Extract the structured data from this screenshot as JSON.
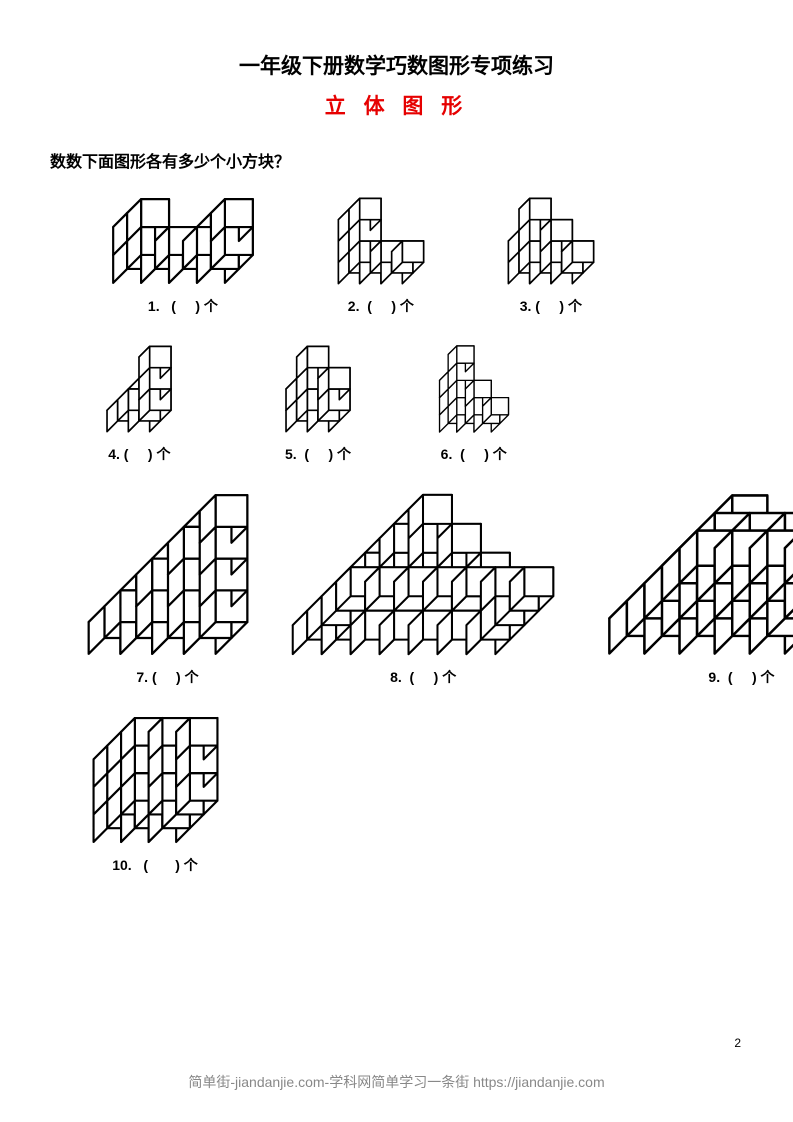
{
  "title": "一年级下册数学巧数图形专项练习",
  "subtitle": "立 体 图 形",
  "instruction": "数数下面图形各有多少个小方块？",
  "captions": {
    "c1": "1.   (     ) 个",
    "c2": "2.  (     ) 个",
    "c3": "3. (     ) 个",
    "c4": "4. (     ) 个",
    "c5": "5.  (     ) 个",
    "c6": "6.  (     ) 个",
    "c7": "7. (     ) 个",
    "c8": "8.  (     ) 个",
    "c9": "9.  (     ) 个",
    "c10": "10.   (       ) 个"
  },
  "page_number": "2",
  "footer": "简单街-jiandanjie.com-学科网简单学习一条街 https://jiandanjie.com",
  "colors": {
    "title_color": "#000000",
    "subtitle_color": "#e60000",
    "text_color": "#000000",
    "footer_color": "#888888",
    "background": "#ffffff",
    "cube_stroke": "#000000",
    "cube_fill": "#ffffff"
  },
  "typography": {
    "title_fontsize": 21,
    "subtitle_fontsize": 21,
    "instruction_fontsize": 16,
    "caption_fontsize": 14,
    "footer_fontsize": 14,
    "pagenum_fontsize": 12
  },
  "figures": {
    "f1": {
      "type": "cubes",
      "unit": 18,
      "cubes": [
        [
          0,
          0,
          0
        ],
        [
          1,
          0,
          0
        ],
        [
          2,
          0,
          0
        ],
        [
          3,
          0,
          0
        ],
        [
          0,
          1,
          0
        ],
        [
          1,
          1,
          0
        ],
        [
          2,
          1,
          0
        ],
        [
          3,
          1,
          0
        ],
        [
          0,
          0,
          1
        ],
        [
          0,
          1,
          1
        ],
        [
          3,
          0,
          1
        ],
        [
          3,
          1,
          1
        ]
      ]
    },
    "f2": {
      "type": "cubes",
      "unit": 18,
      "cubes": [
        [
          0,
          0,
          0
        ],
        [
          1,
          0,
          0
        ],
        [
          2,
          0,
          0
        ],
        [
          0,
          1,
          0
        ],
        [
          1,
          1,
          0
        ],
        [
          2,
          1,
          0
        ],
        [
          0,
          0,
          1
        ],
        [
          0,
          1,
          1
        ],
        [
          0,
          0,
          2
        ],
        [
          0,
          1,
          2
        ]
      ]
    },
    "f3": {
      "type": "cubes",
      "unit": 18,
      "cubes": [
        [
          0,
          0,
          0
        ],
        [
          1,
          0,
          0
        ],
        [
          2,
          0,
          0
        ],
        [
          0,
          1,
          0
        ],
        [
          1,
          1,
          0
        ],
        [
          2,
          1,
          0
        ],
        [
          0,
          0,
          1
        ],
        [
          1,
          0,
          1
        ],
        [
          0,
          1,
          1
        ],
        [
          1,
          1,
          1
        ],
        [
          0,
          0,
          2
        ]
      ]
    },
    "f4": {
      "type": "cubes",
      "unit": 18,
      "cubes": [
        [
          0,
          0,
          0
        ],
        [
          1,
          0,
          0
        ],
        [
          0,
          1,
          0
        ],
        [
          1,
          1,
          0
        ],
        [
          1,
          0,
          1
        ],
        [
          1,
          1,
          1
        ],
        [
          1,
          0,
          2
        ]
      ]
    },
    "f5": {
      "type": "cubes",
      "unit": 18,
      "cubes": [
        [
          0,
          0,
          0
        ],
        [
          1,
          0,
          0
        ],
        [
          0,
          1,
          0
        ],
        [
          1,
          1,
          0
        ],
        [
          0,
          0,
          1
        ],
        [
          1,
          0,
          1
        ],
        [
          0,
          1,
          1
        ],
        [
          0,
          0,
          2
        ]
      ]
    },
    "f6": {
      "type": "cubes",
      "unit": 18,
      "cubes": [
        [
          0,
          0,
          0
        ],
        [
          1,
          0,
          0
        ],
        [
          2,
          0,
          0
        ],
        [
          0,
          1,
          0
        ],
        [
          1,
          1,
          0
        ],
        [
          2,
          1,
          0
        ],
        [
          0,
          0,
          1
        ],
        [
          1,
          0,
          1
        ],
        [
          0,
          1,
          1
        ],
        [
          1,
          1,
          1
        ],
        [
          0,
          0,
          2
        ],
        [
          0,
          1,
          2
        ],
        [
          0,
          0,
          3
        ]
      ]
    },
    "f7": {
      "type": "cubes",
      "unit": 20,
      "cubes": [
        [
          0,
          0,
          0
        ],
        [
          1,
          0,
          0
        ],
        [
          2,
          0,
          0
        ],
        [
          3,
          0,
          0
        ],
        [
          0,
          1,
          0
        ],
        [
          1,
          1,
          0
        ],
        [
          2,
          1,
          0
        ],
        [
          3,
          1,
          0
        ],
        [
          1,
          0,
          1
        ],
        [
          2,
          0,
          1
        ],
        [
          3,
          0,
          1
        ],
        [
          1,
          1,
          1
        ],
        [
          2,
          1,
          1
        ],
        [
          3,
          1,
          1
        ],
        [
          2,
          0,
          2
        ],
        [
          3,
          0,
          2
        ],
        [
          2,
          1,
          2
        ],
        [
          3,
          1,
          2
        ],
        [
          3,
          0,
          3
        ],
        [
          3,
          1,
          3
        ]
      ]
    },
    "f8": {
      "type": "cubes",
      "unit": 20,
      "cubes": [
        [
          0,
          0,
          0
        ],
        [
          1,
          0,
          0
        ],
        [
          2,
          0,
          0
        ],
        [
          3,
          0,
          0
        ],
        [
          4,
          0,
          0
        ],
        [
          5,
          0,
          0
        ],
        [
          6,
          0,
          0
        ],
        [
          0,
          1,
          0
        ],
        [
          6,
          1,
          0
        ],
        [
          0,
          2,
          0
        ],
        [
          6,
          2,
          0
        ],
        [
          0,
          3,
          0
        ],
        [
          1,
          3,
          0
        ],
        [
          2,
          3,
          0
        ],
        [
          3,
          3,
          0
        ],
        [
          4,
          3,
          0
        ],
        [
          5,
          3,
          0
        ],
        [
          6,
          3,
          0
        ],
        [
          1,
          1,
          1
        ],
        [
          2,
          1,
          1
        ],
        [
          3,
          1,
          1
        ],
        [
          4,
          1,
          1
        ],
        [
          5,
          1,
          1
        ],
        [
          1,
          2,
          1
        ],
        [
          5,
          2,
          1
        ],
        [
          2,
          1,
          2
        ],
        [
          3,
          1,
          2
        ],
        [
          4,
          1,
          2
        ],
        [
          2,
          2,
          2
        ],
        [
          4,
          2,
          2
        ],
        [
          3,
          1,
          3
        ],
        [
          3,
          2,
          3
        ]
      ]
    },
    "f9": {
      "type": "cubes",
      "unit": 20,
      "cubes": [
        [
          0,
          0,
          0
        ],
        [
          1,
          0,
          0
        ],
        [
          2,
          0,
          0
        ],
        [
          3,
          0,
          0
        ],
        [
          4,
          0,
          0
        ],
        [
          0,
          1,
          0
        ],
        [
          1,
          1,
          0
        ],
        [
          2,
          1,
          0
        ],
        [
          3,
          1,
          0
        ],
        [
          4,
          1,
          0
        ],
        [
          0,
          2,
          0
        ],
        [
          1,
          2,
          0
        ],
        [
          2,
          2,
          0
        ],
        [
          3,
          2,
          0
        ],
        [
          4,
          2,
          0
        ],
        [
          0,
          3,
          0
        ],
        [
          1,
          3,
          0
        ],
        [
          2,
          3,
          0
        ],
        [
          3,
          3,
          0
        ],
        [
          4,
          3,
          0
        ],
        [
          0,
          4,
          0
        ],
        [
          1,
          4,
          0
        ],
        [
          2,
          4,
          0
        ],
        [
          3,
          4,
          0
        ],
        [
          4,
          4,
          0
        ],
        [
          1,
          1,
          1
        ],
        [
          2,
          1,
          1
        ],
        [
          3,
          1,
          1
        ],
        [
          1,
          2,
          1
        ],
        [
          2,
          2,
          1
        ],
        [
          3,
          2,
          1
        ],
        [
          1,
          3,
          1
        ],
        [
          2,
          3,
          1
        ],
        [
          3,
          3,
          1
        ],
        [
          2,
          2,
          2
        ]
      ]
    },
    "f10": {
      "type": "cubes",
      "unit": 18,
      "cubes": [
        [
          0,
          0,
          0
        ],
        [
          1,
          0,
          0
        ],
        [
          2,
          0,
          0
        ],
        [
          0,
          1,
          0
        ],
        [
          1,
          1,
          0
        ],
        [
          2,
          1,
          0
        ],
        [
          0,
          2,
          0
        ],
        [
          1,
          2,
          0
        ],
        [
          2,
          2,
          0
        ],
        [
          0,
          0,
          1
        ],
        [
          1,
          0,
          1
        ],
        [
          2,
          0,
          1
        ],
        [
          0,
          1,
          1
        ],
        [
          2,
          1,
          1
        ],
        [
          0,
          2,
          1
        ],
        [
          1,
          2,
          1
        ],
        [
          2,
          2,
          1
        ],
        [
          0,
          0,
          2
        ],
        [
          1,
          0,
          2
        ],
        [
          2,
          0,
          2
        ],
        [
          0,
          1,
          2
        ],
        [
          1,
          1,
          2
        ],
        [
          2,
          1,
          2
        ],
        [
          0,
          2,
          2
        ],
        [
          1,
          2,
          2
        ],
        [
          2,
          2,
          2
        ]
      ]
    }
  },
  "layout": {
    "row1_margins": [
      60,
      80,
      80
    ],
    "row2_margins": [
      55,
      110,
      85
    ],
    "row3_margins": [
      35,
      40,
      50
    ],
    "row4_margins": [
      40
    ],
    "fig_heights": {
      "small": 90,
      "large": 165
    }
  }
}
